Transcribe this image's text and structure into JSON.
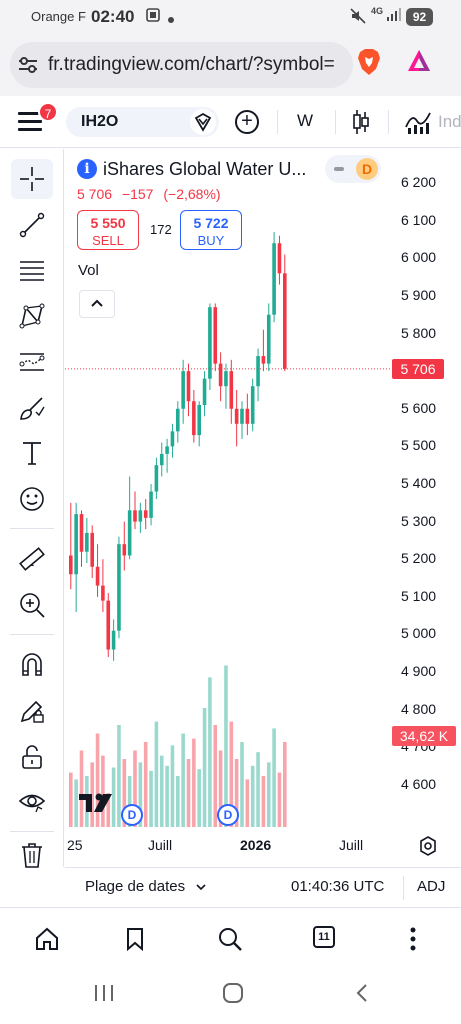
{
  "status_bar": {
    "carrier": "Orange F",
    "time": "02:40",
    "network": "4G",
    "battery": "92"
  },
  "browser": {
    "url": "fr.tradingview.com/chart/?symbol="
  },
  "header": {
    "notifications": "7",
    "symbol": "IH2O",
    "interval": "W",
    "indicators_label": "Ind"
  },
  "legend": {
    "info": "i",
    "name": "iShares Global Water U...",
    "dividend_badge": "D",
    "last": "5 706",
    "change": "−157",
    "change_pct": "(−2,68%)",
    "sell_price": "5 550",
    "sell_label": "SELL",
    "spread": "172",
    "buy_price": "5 722",
    "buy_label": "BUY",
    "volume_label": "Vol"
  },
  "price_axis": {
    "labels": [
      "6 200",
      "6 100",
      "6 000",
      "5 900",
      "5 800",
      "5 600",
      "5 500",
      "5 400",
      "5 300",
      "5 200",
      "5 100",
      "5 000",
      "4 900",
      "4 800",
      "4 700",
      "4 600"
    ],
    "last_price_tag": "5 706",
    "volume_tag": "34,62 K"
  },
  "time_axis": {
    "labels": [
      "25",
      "Juill",
      "2026",
      "Juill"
    ]
  },
  "dividend_markers": [
    "D",
    "D"
  ],
  "range_bar": {
    "range_label": "Plage de dates",
    "time": "01:40:36 UTC",
    "adj": "ADJ"
  },
  "bottom_nav": {
    "tabs_count": "11"
  },
  "colors": {
    "up": "#22ab94",
    "down": "#f23645",
    "accent": "#2962ff"
  },
  "chart_data": {
    "type": "candlestick",
    "interval": "W",
    "ylim": [
      4560,
      6240
    ],
    "grid": false,
    "last_price": 5706,
    "x_ticks": [
      "25",
      "Juill",
      "2026",
      "Juill"
    ],
    "candles": [
      [
        5210,
        5350,
        5120,
        5160
      ],
      [
        5160,
        5350,
        5060,
        5320
      ],
      [
        5320,
        5330,
        5180,
        5220
      ],
      [
        5220,
        5310,
        5190,
        5270
      ],
      [
        5270,
        5290,
        5150,
        5180
      ],
      [
        5180,
        5240,
        5100,
        5130
      ],
      [
        5130,
        5200,
        5060,
        5090
      ],
      [
        5090,
        5110,
        4940,
        4960
      ],
      [
        4960,
        5040,
        4930,
        5010
      ],
      [
        5010,
        5260,
        4990,
        5240
      ],
      [
        5240,
        5300,
        5170,
        5210
      ],
      [
        5210,
        5420,
        5200,
        5330
      ],
      [
        5330,
        5380,
        5280,
        5300
      ],
      [
        5300,
        5350,
        5270,
        5330
      ],
      [
        5330,
        5360,
        5280,
        5310
      ],
      [
        5310,
        5400,
        5290,
        5380
      ],
      [
        5380,
        5470,
        5360,
        5450
      ],
      [
        5450,
        5510,
        5420,
        5480
      ],
      [
        5480,
        5520,
        5430,
        5500
      ],
      [
        5500,
        5560,
        5470,
        5540
      ],
      [
        5540,
        5620,
        5510,
        5600
      ],
      [
        5600,
        5730,
        5560,
        5700
      ],
      [
        5700,
        5720,
        5580,
        5620
      ],
      [
        5620,
        5650,
        5510,
        5530
      ],
      [
        5530,
        5620,
        5500,
        5610
      ],
      [
        5610,
        5700,
        5580,
        5680
      ],
      [
        5680,
        5880,
        5650,
        5870
      ],
      [
        5870,
        5880,
        5700,
        5720
      ],
      [
        5720,
        5750,
        5620,
        5660
      ],
      [
        5660,
        5720,
        5600,
        5700
      ],
      [
        5700,
        5730,
        5560,
        5600
      ],
      [
        5600,
        5650,
        5500,
        5560
      ],
      [
        5560,
        5620,
        5520,
        5600
      ],
      [
        5600,
        5640,
        5530,
        5560
      ],
      [
        5560,
        5680,
        5540,
        5660
      ],
      [
        5660,
        5760,
        5620,
        5740
      ],
      [
        5740,
        5810,
        5700,
        5720
      ],
      [
        5720,
        5880,
        5700,
        5850
      ],
      [
        5850,
        6070,
        5830,
        6040
      ],
      [
        6040,
        6060,
        5930,
        5960
      ],
      [
        5960,
        6010,
        5700,
        5706
      ]
    ],
    "volumes": [
      0.32,
      0.28,
      0.45,
      0.3,
      0.38,
      0.55,
      0.42,
      0.2,
      0.35,
      0.6,
      0.4,
      0.3,
      0.45,
      0.38,
      0.5,
      0.33,
      0.62,
      0.42,
      0.36,
      0.48,
      0.3,
      0.55,
      0.4,
      0.52,
      0.34,
      0.7,
      0.88,
      0.6,
      0.45,
      0.95,
      0.62,
      0.4,
      0.5,
      0.28,
      0.36,
      0.44,
      0.3,
      0.38,
      0.58,
      0.32,
      0.5
    ]
  }
}
